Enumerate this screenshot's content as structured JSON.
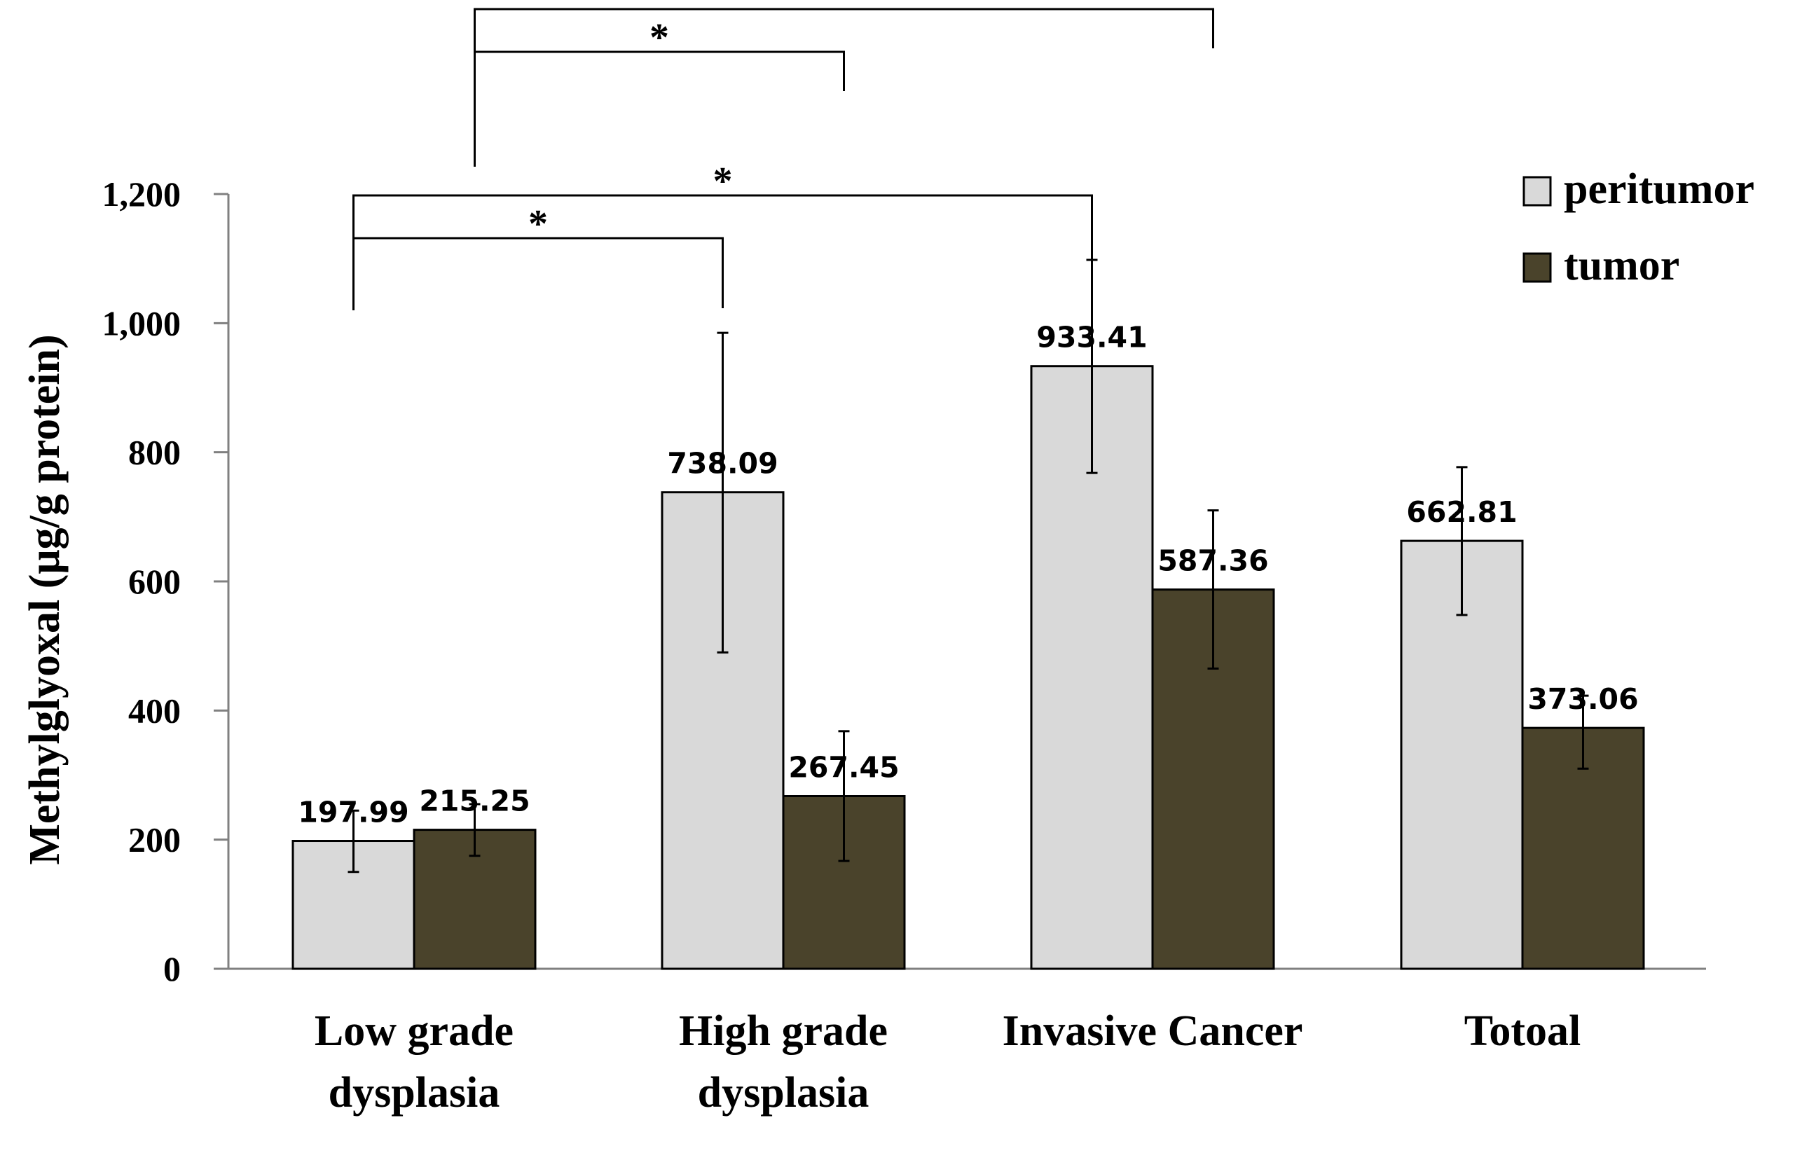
{
  "chart_data": {
    "type": "bar",
    "title": "",
    "xlabel": "",
    "ylabel": "Methylglyoxal (μg/g protein)",
    "ylim": [
      0,
      1200
    ],
    "yticks": [
      0,
      200,
      400,
      600,
      800,
      1000,
      1200
    ],
    "ytick_labels": [
      "0",
      "200",
      "400",
      "600",
      "800",
      "1,000",
      "1,200"
    ],
    "categories": [
      [
        "Low grade",
        "dysplasia"
      ],
      [
        "High grade",
        "dysplasia"
      ],
      [
        "Invasive Cancer"
      ],
      [
        "Totoal"
      ]
    ],
    "series": [
      {
        "name": "peritumor",
        "color": "#d9d9d9",
        "values": [
          197.99,
          738.09,
          933.41,
          662.81
        ],
        "labels": [
          "197.99",
          "738.09",
          "933.41",
          "662.81"
        ],
        "error_low": [
          150,
          490,
          768,
          548
        ],
        "error_high": [
          245,
          985,
          1098,
          777
        ]
      },
      {
        "name": "tumor",
        "color": "#4a432b",
        "values": [
          215.25,
          267.45,
          587.36,
          373.06
        ],
        "labels": [
          "215.25",
          "267.45",
          "587.36",
          "373.06"
        ],
        "error_low": [
          175,
          167,
          465,
          310
        ],
        "error_high": [
          255,
          368,
          710,
          423
        ]
      }
    ],
    "significance": [
      {
        "from": {
          "category": 0,
          "series": 0
        },
        "to": {
          "category": 1,
          "series": 0
        },
        "label": "*"
      },
      {
        "from": {
          "category": 0,
          "series": 0
        },
        "to": {
          "category": 2,
          "series": 0
        },
        "label": "*"
      },
      {
        "from": {
          "category": 0,
          "series": 1
        },
        "to": {
          "category": 1,
          "series": 1
        },
        "label": "*"
      },
      {
        "from": {
          "category": 0,
          "series": 1
        },
        "to": {
          "category": 2,
          "series": 1
        },
        "label": "*"
      }
    ],
    "legend": {
      "position": "top-right"
    },
    "grid": false
  }
}
